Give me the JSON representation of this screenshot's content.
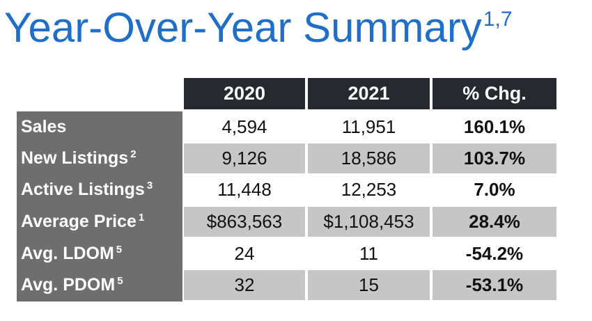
{
  "title": {
    "text": "Year-Over-Year Summary",
    "sup": "1,7"
  },
  "table": {
    "headers": [
      "2020",
      "2021",
      "% Chg."
    ],
    "rows": [
      {
        "label": "Sales",
        "sup": "",
        "v2020": "4,594",
        "v2021": "11,951",
        "chg": "160.1%"
      },
      {
        "label": "New Listings",
        "sup": "2",
        "v2020": "9,126",
        "v2021": "18,586",
        "chg": "103.7%"
      },
      {
        "label": "Active Listings",
        "sup": "3",
        "v2020": "11,448",
        "v2021": "12,253",
        "chg": "7.0%"
      },
      {
        "label": "Average Price",
        "sup": "1",
        "v2020": "$863,563",
        "v2021": "$1,108,453",
        "chg": "28.4%"
      },
      {
        "label": "Avg. LDOM",
        "sup": "5",
        "v2020": "24",
        "v2021": "11",
        "chg": "-54.2%"
      },
      {
        "label": "Avg. PDOM",
        "sup": "5",
        "v2020": "32",
        "v2021": "15",
        "chg": "-53.1%"
      }
    ]
  },
  "colors": {
    "title_blue": "#1f6fc8",
    "header_bg": "#262a30",
    "label_bg": "#6e6e6e",
    "shaded_row": "#c6c6c6"
  }
}
